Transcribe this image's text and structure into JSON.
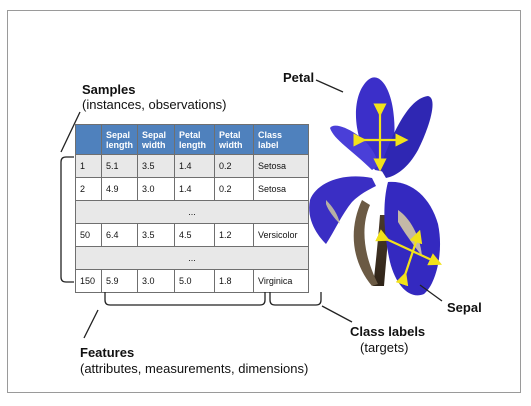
{
  "labels": {
    "samples_title": "Samples",
    "samples_sub": "(instances, observations)",
    "features_title": "Features",
    "features_sub": "(attributes, measurements, dimensions)",
    "class_title": "Class labels",
    "class_sub": "(targets)",
    "petal": "Petal",
    "sepal": "Sepal"
  },
  "table": {
    "headers": [
      "",
      "Sepal length",
      "Sepal width",
      "Petal length",
      "Petal width",
      "Class label"
    ],
    "rows": [
      [
        "1",
        "5.1",
        "3.5",
        "1.4",
        "0.2",
        "Setosa"
      ],
      [
        "2",
        "4.9",
        "3.0",
        "1.4",
        "0.2",
        "Setosa"
      ],
      [
        "50",
        "6.4",
        "3.5",
        "4.5",
        "1.2",
        "Versicolor"
      ],
      [
        "150",
        "5.9",
        "3.0",
        "5.0",
        "1.8",
        "Virginica"
      ]
    ],
    "ellipsis": "..."
  },
  "colors": {
    "header_bg": "#4f81bd",
    "row_shade": "#e8e8e8",
    "arrow": "#f2e21a",
    "flower": "#3b2fc9"
  }
}
